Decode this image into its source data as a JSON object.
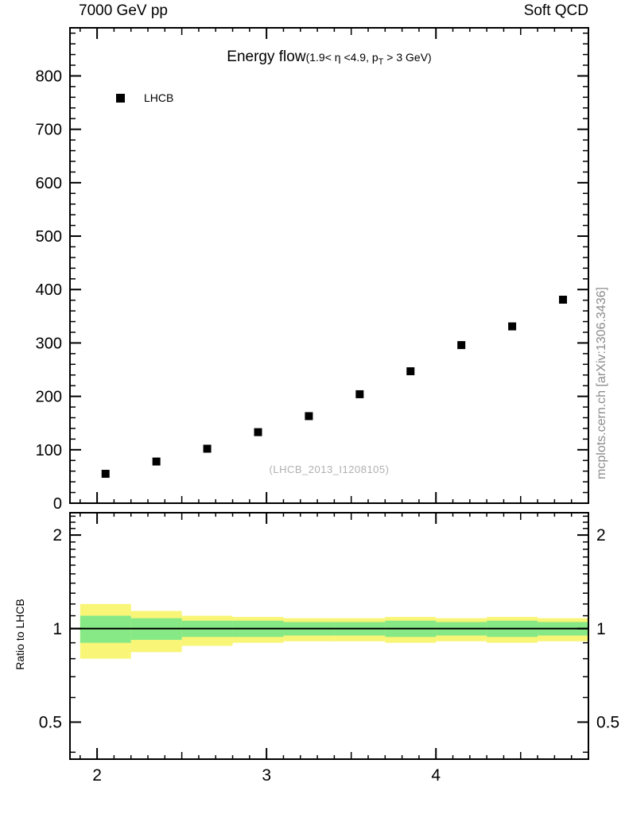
{
  "header": {
    "left": "7000 GeV pp",
    "right": "Soft QCD"
  },
  "title": {
    "main": "Energy flow",
    "paren_pre": "(1.9< η <4.9, p",
    "paren_sub": "T",
    "paren_post": " > 3 GeV)"
  },
  "legend": {
    "items": [
      {
        "label": "LHCB",
        "marker": "black-square"
      }
    ]
  },
  "watermark": "(LHCB_2013_I1208105)",
  "side_text": "mcplots.cern.ch [arXiv:1306.3436]",
  "ratio_ylabel": "Ratio to LHCB",
  "colors": {
    "marker": "#000000",
    "yellow_band": "#f8f577",
    "green_band": "#86e986",
    "frame": "#000000",
    "watermark": "#b0b0b0",
    "side_text": "#8c8c8c"
  },
  "chart_data": {
    "type": "scatter",
    "title": "Energy flow (1.9< η <4.9, p_T > 3 GeV)",
    "xlabel": "",
    "ylabel": "",
    "legend_position": "top-left",
    "grid": false,
    "xlim": [
      1.84,
      4.9
    ],
    "xticks": [
      2,
      3,
      4
    ],
    "main_panel": {
      "ylim": [
        0,
        890
      ],
      "yticks": [
        0,
        100,
        200,
        300,
        400,
        500,
        600,
        700,
        800
      ],
      "series": [
        {
          "name": "LHCB",
          "marker": "filled-square",
          "color": "#000000",
          "x": [
            2.05,
            2.35,
            2.65,
            2.95,
            3.25,
            3.55,
            3.85,
            4.15,
            4.45,
            4.75
          ],
          "y": [
            55,
            78,
            102,
            133,
            163,
            204,
            247,
            296,
            331,
            381
          ]
        }
      ]
    },
    "ratio_panel": {
      "scale": "log",
      "ylim": [
        0.38,
        2.36
      ],
      "yticks": [
        0.5,
        1,
        2
      ],
      "reference_line": 1.0,
      "bin_edges": [
        1.9,
        2.2,
        2.5,
        2.8,
        3.1,
        3.4,
        3.7,
        4.0,
        4.3,
        4.6,
        4.9
      ],
      "yellow_band": {
        "low": [
          0.8,
          0.84,
          0.88,
          0.9,
          0.91,
          0.91,
          0.9,
          0.91,
          0.9,
          0.91
        ],
        "high": [
          1.2,
          1.14,
          1.1,
          1.09,
          1.08,
          1.08,
          1.09,
          1.08,
          1.09,
          1.08
        ]
      },
      "green_band": {
        "low": [
          0.9,
          0.92,
          0.94,
          0.94,
          0.95,
          0.95,
          0.94,
          0.95,
          0.94,
          0.95
        ],
        "high": [
          1.1,
          1.08,
          1.06,
          1.06,
          1.05,
          1.05,
          1.06,
          1.05,
          1.06,
          1.05
        ]
      }
    }
  }
}
